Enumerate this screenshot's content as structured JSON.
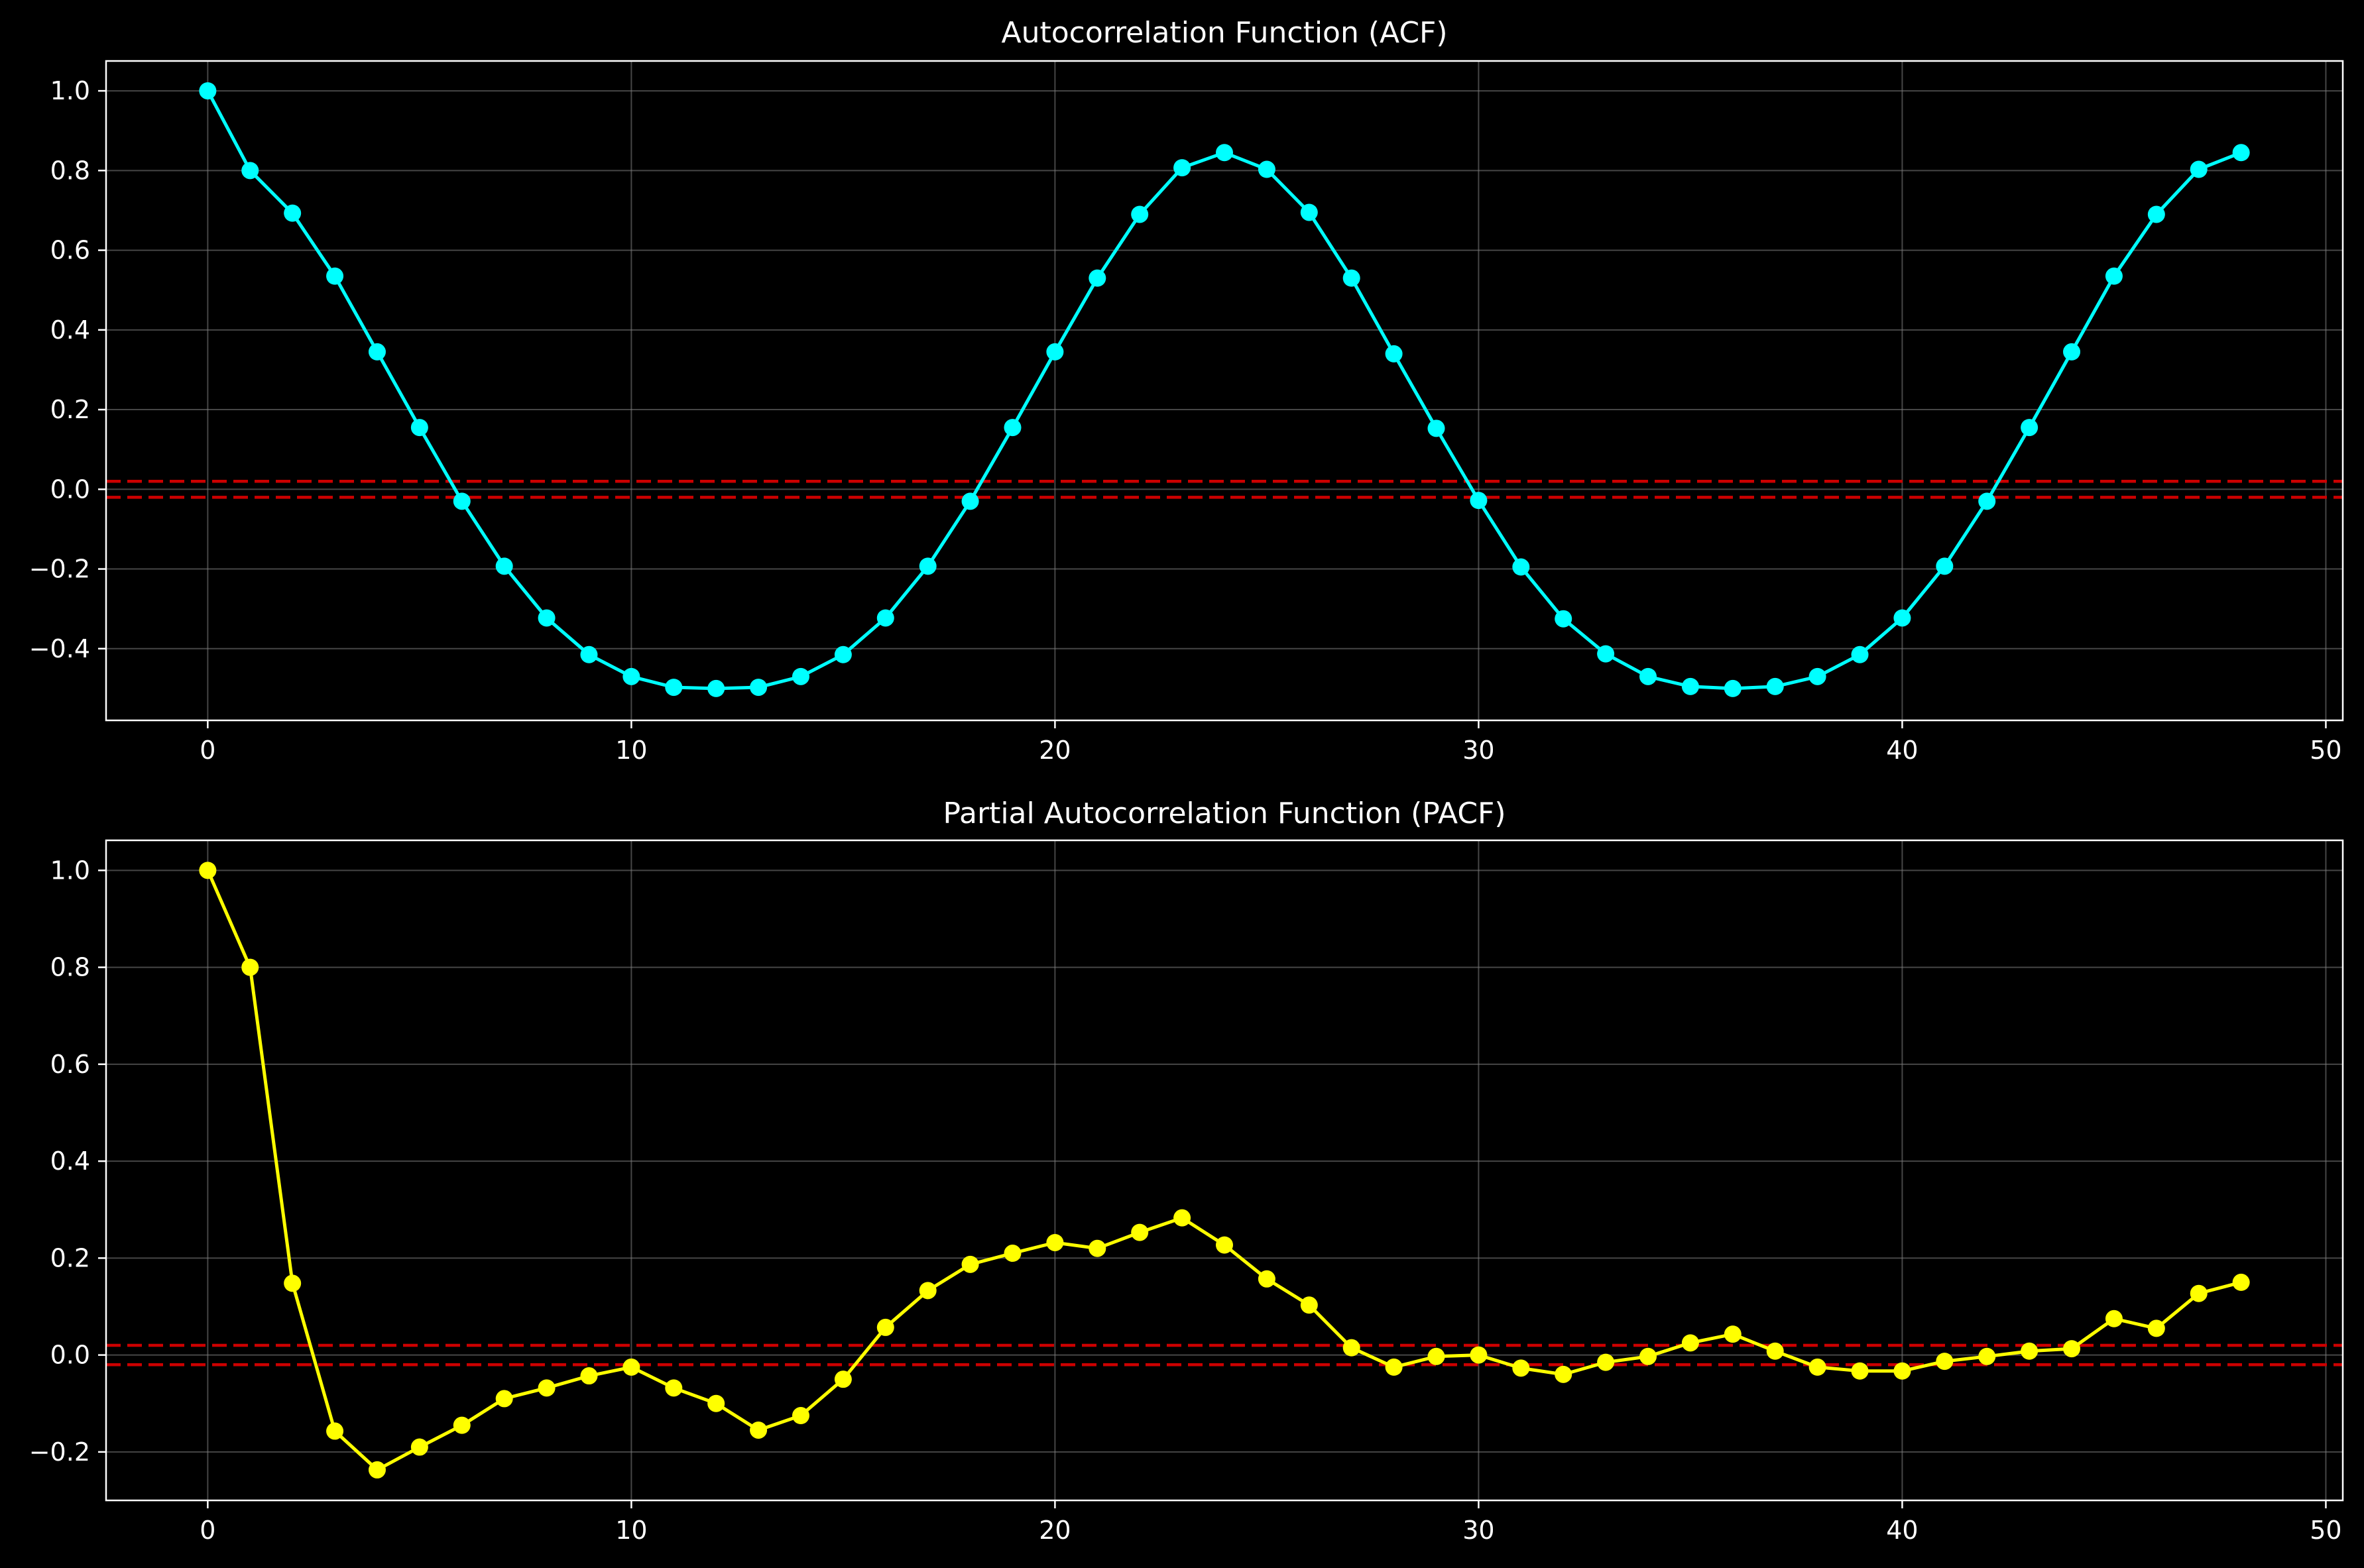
{
  "colors": {
    "background": "#000000",
    "axes": "#ffffff",
    "grid": "#808080",
    "confidence": "#cc0000",
    "acf": "#00ffff",
    "pacf": "#ffff00"
  },
  "chart_data": [
    {
      "type": "line",
      "title": "Autocorrelation Function (ACF)",
      "xlabel": "",
      "ylabel": "",
      "xlim": [
        -2.4,
        50.4
      ],
      "ylim": [
        -0.58,
        1.075
      ],
      "xticks": [
        0,
        10,
        20,
        30,
        40,
        50
      ],
      "xtick_labels": [
        "0",
        "10",
        "20",
        "30",
        "40",
        "50"
      ],
      "yticks": [
        -0.4,
        -0.2,
        0.0,
        0.2,
        0.4,
        0.6,
        0.8,
        1.0
      ],
      "ytick_labels": [
        "−0.4",
        "−0.2",
        "0.0",
        "0.2",
        "0.4",
        "0.6",
        "0.8",
        "1.0"
      ],
      "grid": true,
      "confidence_band": [
        -0.02,
        0.02
      ],
      "series": [
        {
          "name": "ACF",
          "color": "#00ffff",
          "marker": "circle",
          "x": [
            0,
            1,
            2,
            3,
            4,
            5,
            6,
            7,
            8,
            9,
            10,
            11,
            12,
            13,
            14,
            15,
            16,
            17,
            18,
            19,
            20,
            21,
            22,
            23,
            24,
            25,
            26,
            27,
            28,
            29,
            30,
            31,
            32,
            33,
            34,
            35,
            36,
            37,
            38,
            39,
            40,
            41,
            42,
            43,
            44,
            45,
            46,
            47,
            48
          ],
          "values": [
            1.0,
            0.8,
            0.693,
            0.535,
            0.345,
            0.155,
            -0.03,
            -0.193,
            -0.323,
            -0.415,
            -0.47,
            -0.497,
            -0.5,
            -0.497,
            -0.47,
            -0.415,
            -0.323,
            -0.193,
            -0.03,
            0.155,
            0.345,
            0.53,
            0.69,
            0.807,
            0.845,
            0.803,
            0.695,
            0.53,
            0.34,
            0.153,
            -0.028,
            -0.195,
            -0.325,
            -0.413,
            -0.47,
            -0.495,
            -0.5,
            -0.495,
            -0.47,
            -0.415,
            -0.323,
            -0.193,
            -0.03,
            0.155,
            0.345,
            0.535,
            0.69,
            0.803,
            0.845
          ]
        }
      ]
    },
    {
      "type": "line",
      "title": "Partial Autocorrelation Function (PACF)",
      "xlabel": "",
      "ylabel": "",
      "xlim": [
        -2.4,
        50.4
      ],
      "ylim": [
        -0.3,
        1.062
      ],
      "xticks": [
        0,
        10,
        20,
        30,
        40,
        50
      ],
      "xtick_labels": [
        "0",
        "10",
        "20",
        "30",
        "40",
        "50"
      ],
      "yticks": [
        -0.2,
        0.0,
        0.2,
        0.4,
        0.6,
        0.8,
        1.0
      ],
      "ytick_labels": [
        "−0.2",
        "0.0",
        "0.2",
        "0.4",
        "0.6",
        "0.8",
        "1.0"
      ],
      "grid": true,
      "confidence_band": [
        -0.02,
        0.02
      ],
      "series": [
        {
          "name": "PACF",
          "color": "#ffff00",
          "marker": "circle",
          "x": [
            0,
            1,
            2,
            3,
            4,
            5,
            6,
            7,
            8,
            9,
            10,
            11,
            12,
            13,
            14,
            15,
            16,
            17,
            18,
            19,
            20,
            21,
            22,
            23,
            24,
            25,
            26,
            27,
            28,
            29,
            30,
            31,
            32,
            33,
            34,
            35,
            36,
            37,
            38,
            39,
            40,
            41,
            42,
            43,
            44,
            45,
            46,
            47,
            48
          ],
          "values": [
            1.0,
            0.8,
            0.148,
            -0.157,
            -0.237,
            -0.19,
            -0.145,
            -0.09,
            -0.068,
            -0.043,
            -0.025,
            -0.068,
            -0.1,
            -0.155,
            -0.125,
            -0.05,
            0.057,
            0.133,
            0.187,
            0.21,
            0.232,
            0.22,
            0.253,
            0.283,
            0.227,
            0.157,
            0.103,
            0.015,
            -0.025,
            -0.003,
            0.0,
            -0.027,
            -0.04,
            -0.015,
            -0.003,
            0.025,
            0.043,
            0.008,
            -0.025,
            -0.033,
            -0.033,
            -0.013,
            -0.003,
            0.008,
            0.013,
            0.075,
            0.055,
            0.127,
            0.15
          ]
        }
      ]
    }
  ]
}
